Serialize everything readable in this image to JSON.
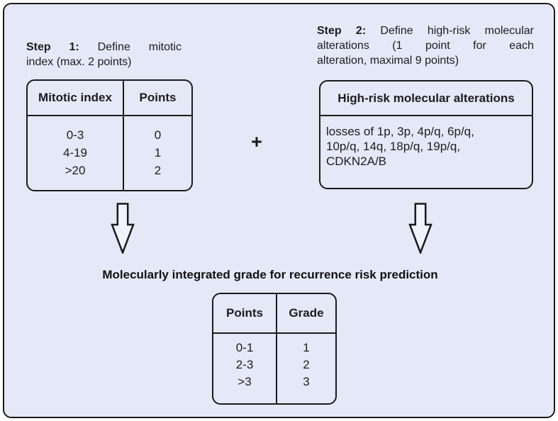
{
  "colors": {
    "panel_background": "#e4e8f7",
    "outline": "#1b1b1b",
    "arrow_fill": "#eff3fb",
    "text": "#1d1d1f"
  },
  "step1": {
    "heading_lines": [
      "Step 1: Define mitotic",
      "index (max. 2 points)"
    ],
    "table": {
      "headers": [
        "Mitotic index",
        "Points"
      ],
      "rows": [
        [
          "0-3",
          "0"
        ],
        [
          "4-19",
          "1"
        ],
        [
          ">20",
          "2"
        ]
      ]
    }
  },
  "plus": "+",
  "step2": {
    "heading_lines": [
      "Step 2: Define high-risk molecular",
      "alterations (1 point for each",
      "alteration, maximal 9 points)"
    ],
    "table": {
      "header": "High-risk molecular alterations",
      "body_lines": [
        "losses of 1p, 3p, 4p/q, 6p/q,",
        "10p/q, 14q, 18p/q, 19p/q,",
        "CDKN2A/B"
      ]
    }
  },
  "result": {
    "title": "Molecularly integrated grade for recurrence risk prediction",
    "table": {
      "headers": [
        "Points",
        "Grade"
      ],
      "rows": [
        [
          "0-1",
          "1"
        ],
        [
          "2-3",
          "2"
        ],
        [
          ">3",
          "3"
        ]
      ]
    }
  }
}
